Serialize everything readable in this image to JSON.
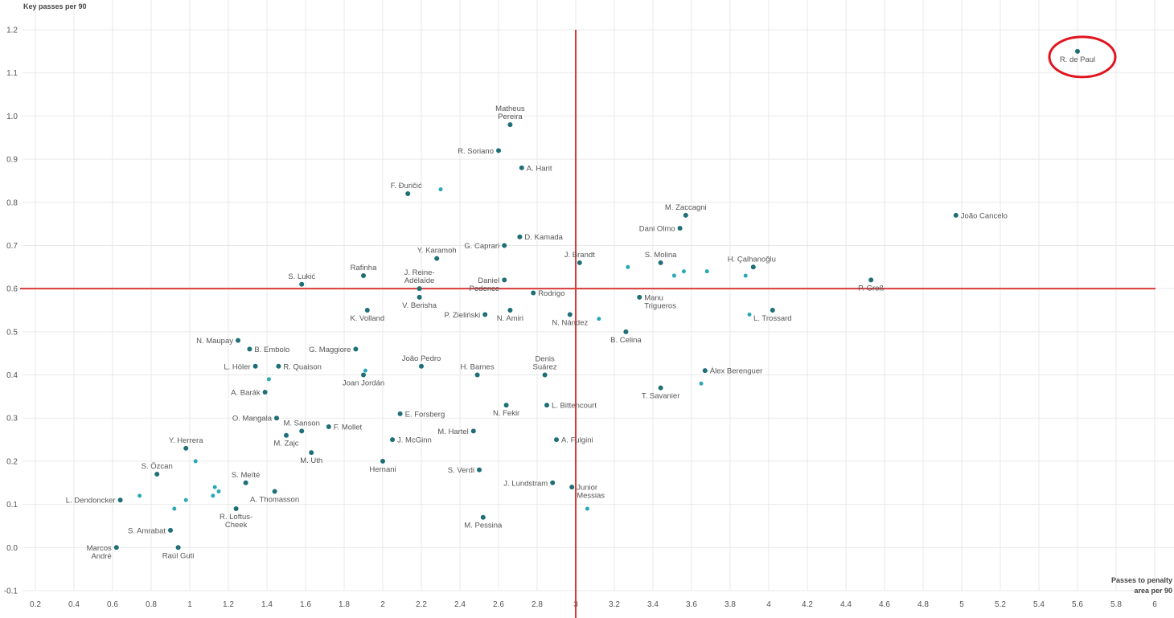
{
  "chart_data": {
    "type": "scatter",
    "ylabel": "Key passes per 90",
    "xlabel_lines": [
      "Passes to penalty",
      "area per 90"
    ],
    "xlim": [
      0.2,
      6.0
    ],
    "ylim": [
      -0.1,
      1.2
    ],
    "x_ticks": [
      "0.2",
      "0.4",
      "0.6",
      "0.8",
      "1",
      "1.2",
      "1.4",
      "1.6",
      "1.8",
      "2",
      "2.2",
      "2.4",
      "2.6",
      "2.8",
      "3",
      "3.2",
      "3.4",
      "3.6",
      "3.8",
      "4",
      "4.2",
      "4.4",
      "4.6",
      "4.8",
      "5",
      "5.2",
      "5.4",
      "5.6",
      "5.8",
      "6"
    ],
    "y_ticks": [
      "-0.1",
      "0.0",
      "0.1",
      "0.2",
      "0.3",
      "0.4",
      "0.5",
      "0.6",
      "0.7",
      "0.8",
      "0.9",
      "1.0",
      "1.1",
      "1.2"
    ],
    "grid": true,
    "reference_lines": {
      "x": 3.0,
      "y": 0.6,
      "color": "#d93a3a"
    },
    "highlight": {
      "point": "R. de Paul",
      "color": "#e0141e"
    },
    "colors": {
      "labeled": "#1f6f78",
      "unlabeled": "#2aa8b8"
    },
    "points": [
      {
        "name": "R. de Paul",
        "x": 5.6,
        "y": 1.15
      },
      {
        "name": "Matheus Pereira",
        "x": 2.66,
        "y": 0.98
      },
      {
        "name": "R. Soriano",
        "x": 2.6,
        "y": 0.92
      },
      {
        "name": "A. Harit",
        "x": 2.72,
        "y": 0.88
      },
      {
        "name": "F. Đuričić",
        "x": 2.13,
        "y": 0.82
      },
      {
        "name": "M. Zaccagni",
        "x": 3.57,
        "y": 0.77
      },
      {
        "name": "João Cancelo",
        "x": 4.97,
        "y": 0.77
      },
      {
        "name": "Dani Olmo",
        "x": 3.54,
        "y": 0.74
      },
      {
        "name": "D. Kamada",
        "x": 2.71,
        "y": 0.72
      },
      {
        "name": "G. Caprari",
        "x": 2.63,
        "y": 0.7
      },
      {
        "name": "Y. Karamoh",
        "x": 2.28,
        "y": 0.67
      },
      {
        "name": "J. Brandt",
        "x": 3.02,
        "y": 0.66
      },
      {
        "name": "S. Molina",
        "x": 3.44,
        "y": 0.66
      },
      {
        "name": "H. Çalhanoğlu",
        "x": 3.92,
        "y": 0.65
      },
      {
        "name": "Rafinha",
        "x": 1.9,
        "y": 0.63
      },
      {
        "name": "Daniel Podence",
        "x": 2.63,
        "y": 0.62
      },
      {
        "name": "P. Groß",
        "x": 4.53,
        "y": 0.62
      },
      {
        "name": "S. Lukić",
        "x": 1.58,
        "y": 0.61
      },
      {
        "name": "J. Reine-Adélaïde",
        "x": 2.19,
        "y": 0.6
      },
      {
        "name": "Rodrigo",
        "x": 2.78,
        "y": 0.59
      },
      {
        "name": "V. Berisha",
        "x": 2.19,
        "y": 0.58
      },
      {
        "name": "Manu Trigueros",
        "x": 3.33,
        "y": 0.58
      },
      {
        "name": "K. Volland",
        "x": 1.92,
        "y": 0.55
      },
      {
        "name": "N. Amiri",
        "x": 2.66,
        "y": 0.55
      },
      {
        "name": "L. Trossard",
        "x": 4.02,
        "y": 0.55
      },
      {
        "name": "P. Zieliński",
        "x": 2.53,
        "y": 0.54
      },
      {
        "name": "N. Nández",
        "x": 2.97,
        "y": 0.54
      },
      {
        "name": "B. Celina",
        "x": 3.26,
        "y": 0.5
      },
      {
        "name": "N. Maupay",
        "x": 1.25,
        "y": 0.48
      },
      {
        "name": "B. Embolo",
        "x": 1.31,
        "y": 0.46
      },
      {
        "name": "G. Maggiore",
        "x": 1.86,
        "y": 0.46
      },
      {
        "name": "L. Höler",
        "x": 1.34,
        "y": 0.42
      },
      {
        "name": "R. Quaison",
        "x": 1.46,
        "y": 0.42
      },
      {
        "name": "João Pedro",
        "x": 2.2,
        "y": 0.42
      },
      {
        "name": "Álex Berenguer",
        "x": 3.67,
        "y": 0.41
      },
      {
        "name": "H. Barnes",
        "x": 2.49,
        "y": 0.4
      },
      {
        "name": "Denis Suárez",
        "x": 2.84,
        "y": 0.4
      },
      {
        "name": "Joan Jordán",
        "x": 1.9,
        "y": 0.4
      },
      {
        "name": "T. Savanier",
        "x": 3.44,
        "y": 0.37
      },
      {
        "name": "A. Barák",
        "x": 1.39,
        "y": 0.36
      },
      {
        "name": "N. Fekir",
        "x": 2.64,
        "y": 0.33
      },
      {
        "name": "L. Bittencourt",
        "x": 2.85,
        "y": 0.33
      },
      {
        "name": "E. Forsberg",
        "x": 2.09,
        "y": 0.31
      },
      {
        "name": "O. Mangala",
        "x": 1.45,
        "y": 0.3
      },
      {
        "name": "M. Sanson",
        "x": 1.58,
        "y": 0.27
      },
      {
        "name": "F. Mollet",
        "x": 1.72,
        "y": 0.28
      },
      {
        "name": "M. Hartel",
        "x": 2.47,
        "y": 0.27
      },
      {
        "name": "M. Zajc",
        "x": 1.5,
        "y": 0.26
      },
      {
        "name": "J. McGinn",
        "x": 2.05,
        "y": 0.25
      },
      {
        "name": "A. Fulgini",
        "x": 2.9,
        "y": 0.25
      },
      {
        "name": "Y. Herrera",
        "x": 0.98,
        "y": 0.23
      },
      {
        "name": "M. Uth",
        "x": 1.63,
        "y": 0.22
      },
      {
        "name": "Hernani",
        "x": 2.0,
        "y": 0.2
      },
      {
        "name": "S. Verdi",
        "x": 2.5,
        "y": 0.18
      },
      {
        "name": "S. Özcan",
        "x": 0.83,
        "y": 0.17
      },
      {
        "name": "S. Meïté",
        "x": 1.29,
        "y": 0.15
      },
      {
        "name": "J. Lundstram",
        "x": 2.88,
        "y": 0.15
      },
      {
        "name": "Junior Messias",
        "x": 2.98,
        "y": 0.14
      },
      {
        "name": "A. Thomasson",
        "x": 1.44,
        "y": 0.13
      },
      {
        "name": "L. Dendoncker",
        "x": 0.64,
        "y": 0.11
      },
      {
        "name": "R. Loftus-Cheek",
        "x": 1.24,
        "y": 0.09
      },
      {
        "name": "M. Pessina",
        "x": 2.52,
        "y": 0.07
      },
      {
        "name": "S. Amrabat",
        "x": 0.9,
        "y": 0.04
      },
      {
        "name": "Marcos André",
        "x": 0.62,
        "y": 0.0
      },
      {
        "name": "Raúl Guti",
        "x": 0.94,
        "y": 0.0
      }
    ],
    "unlabeled_points": [
      {
        "x": 2.6,
        "y": 0.92
      },
      {
        "x": 2.3,
        "y": 0.83
      },
      {
        "x": 3.27,
        "y": 0.65
      },
      {
        "x": 3.51,
        "y": 0.63
      },
      {
        "x": 3.56,
        "y": 0.64
      },
      {
        "x": 3.68,
        "y": 0.64
      },
      {
        "x": 3.88,
        "y": 0.63
      },
      {
        "x": 3.12,
        "y": 0.53
      },
      {
        "x": 3.9,
        "y": 0.54
      },
      {
        "x": 1.91,
        "y": 0.41
      },
      {
        "x": 1.41,
        "y": 0.39
      },
      {
        "x": 3.65,
        "y": 0.38
      },
      {
        "x": 1.03,
        "y": 0.2
      },
      {
        "x": 0.74,
        "y": 0.12
      },
      {
        "x": 1.13,
        "y": 0.14
      },
      {
        "x": 1.15,
        "y": 0.13
      },
      {
        "x": 1.12,
        "y": 0.12
      },
      {
        "x": 0.98,
        "y": 0.11
      },
      {
        "x": 0.92,
        "y": 0.09
      },
      {
        "x": 3.06,
        "y": 0.09
      }
    ]
  }
}
